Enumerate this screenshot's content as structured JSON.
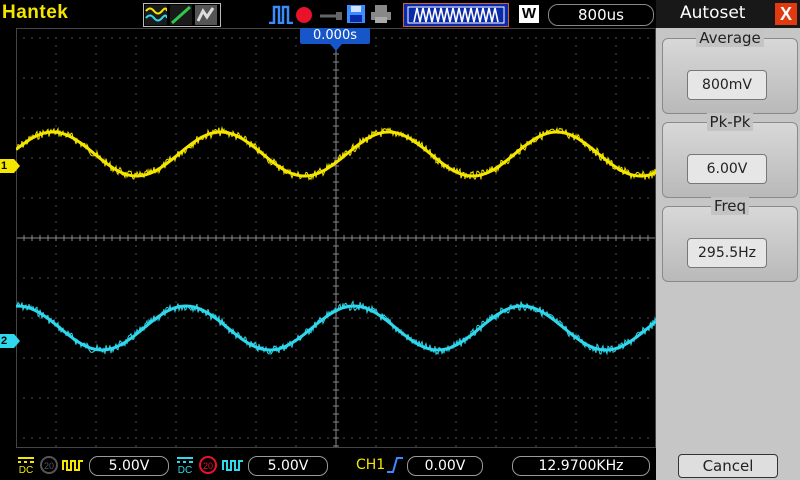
{
  "brand": "Hantek",
  "topbar": {
    "timebase": "800us",
    "mode_letter": "W",
    "trigger_position": "0.000s"
  },
  "panel": {
    "title": "Autoset",
    "close": "X",
    "boxes": [
      {
        "label": "Average",
        "value": "800mV"
      },
      {
        "label": "Pk-Pk",
        "value": "6.00V"
      },
      {
        "label": "Freq",
        "value": "295.5Hz"
      }
    ],
    "cancel": "Cancel"
  },
  "channels": {
    "ch1": {
      "marker": "1",
      "color": "#f5e600",
      "coupling": "DC",
      "bw": "20",
      "scale": "5.00V"
    },
    "ch2": {
      "marker": "2",
      "color": "#2fd8ec",
      "coupling": "DC",
      "bw": "20",
      "scale": "5.00V"
    }
  },
  "trigger": {
    "source": "CH1",
    "level": "0.00V"
  },
  "frequency_counter": "12.9700KHz",
  "colors": {
    "ch1": "#f5e600",
    "ch2": "#2fd8ec",
    "accent": "#1756c8",
    "close": "#e23a10"
  }
}
